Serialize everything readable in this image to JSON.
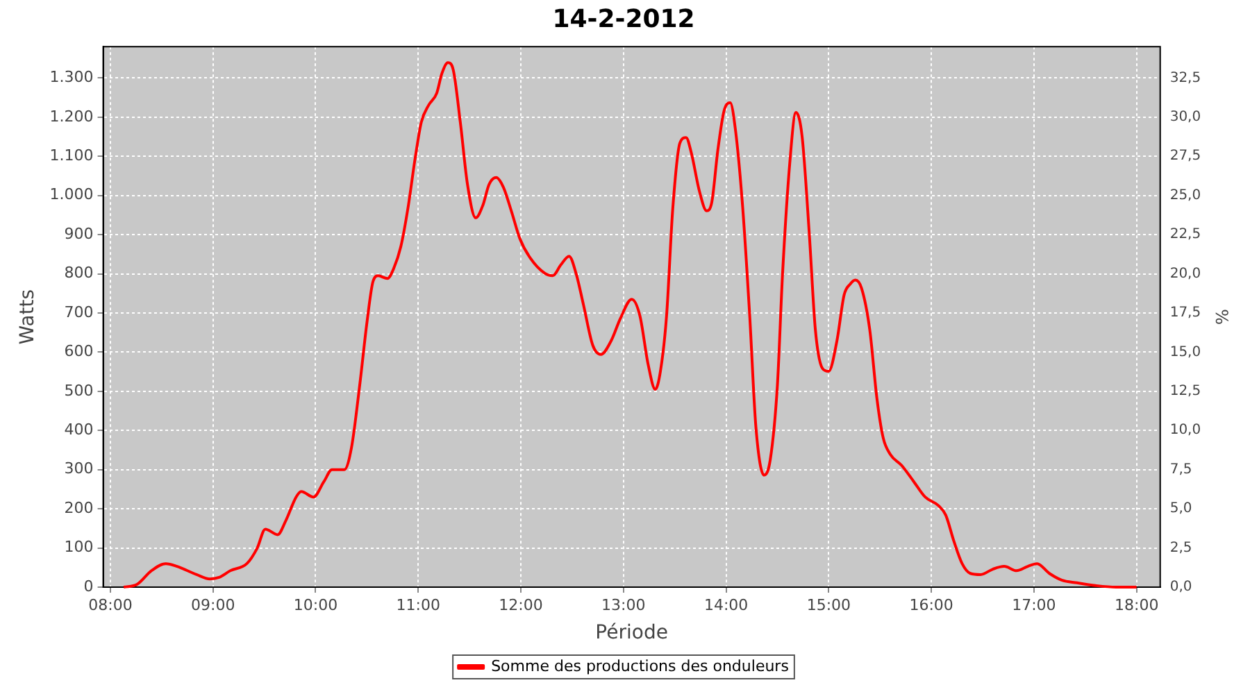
{
  "chart_data": {
    "type": "line",
    "title": "14-2-2012",
    "xlabel": "Période",
    "ylabel": "Watts",
    "y2label": "%",
    "xlim": [
      7.93,
      18.23
    ],
    "xticks": [
      {
        "value": 8,
        "label": "08:00"
      },
      {
        "value": 9,
        "label": "09:00"
      },
      {
        "value": 10,
        "label": "10:00"
      },
      {
        "value": 11,
        "label": "11:00"
      },
      {
        "value": 12,
        "label": "12:00"
      },
      {
        "value": 13,
        "label": "13:00"
      },
      {
        "value": 14,
        "label": "14:00"
      },
      {
        "value": 15,
        "label": "15:00"
      },
      {
        "value": 16,
        "label": "16:00"
      },
      {
        "value": 17,
        "label": "17:00"
      },
      {
        "value": 18,
        "label": "18:00"
      }
    ],
    "ylim": [
      0,
      1380
    ],
    "yticks": [
      0,
      100,
      200,
      300,
      400,
      500,
      600,
      700,
      800,
      900,
      {
        "value": 1000,
        "label": "1.000"
      },
      {
        "value": 1100,
        "label": "1.100"
      },
      {
        "value": 1200,
        "label": "1.200"
      },
      {
        "value": 1300,
        "label": "1.300"
      }
    ],
    "y2lim": [
      0,
      34.5
    ],
    "y2ticks": [
      {
        "value": 0,
        "label": "0,0"
      },
      {
        "value": 2.5,
        "label": "2,5"
      },
      {
        "value": 5,
        "label": "5,0"
      },
      {
        "value": 7.5,
        "label": "7,5"
      },
      {
        "value": 10,
        "label": "10,0"
      },
      {
        "value": 12.5,
        "label": "12,5"
      },
      {
        "value": 15,
        "label": "15,0"
      },
      {
        "value": 17.5,
        "label": "17,5"
      },
      {
        "value": 20,
        "label": "20,0"
      },
      {
        "value": 22.5,
        "label": "22,5"
      },
      {
        "value": 25,
        "label": "25,0"
      },
      {
        "value": 27.5,
        "label": "27,5"
      },
      {
        "value": 30,
        "label": "30,0"
      },
      {
        "value": 32.5,
        "label": "32,5"
      }
    ],
    "grid": true,
    "legend": "bottom",
    "marker": "none",
    "line_style": "solid",
    "series": [
      {
        "name": "Somme des productions des onduleurs",
        "color": "#ff0000",
        "x": [
          8.13,
          8.26,
          8.4,
          8.54,
          8.65,
          8.84,
          8.97,
          9.06,
          9.17,
          9.33,
          9.43,
          9.51,
          9.63,
          9.71,
          9.81,
          9.86,
          9.98,
          10.08,
          10.16,
          10.28,
          10.35,
          10.43,
          10.5,
          10.56,
          10.61,
          10.7,
          10.76,
          10.83,
          10.9,
          10.97,
          11.03,
          11.1,
          11.18,
          11.23,
          11.29,
          11.34,
          11.41,
          11.48,
          11.56,
          11.63,
          11.69,
          11.76,
          11.83,
          11.91,
          11.99,
          12.09,
          12.23,
          12.31,
          12.39,
          12.47,
          12.54,
          12.61,
          12.7,
          12.78,
          12.88,
          12.97,
          13.08,
          13.16,
          13.24,
          13.31,
          13.36,
          13.42,
          13.48,
          13.55,
          13.61,
          13.66,
          13.74,
          13.81,
          13.86,
          13.92,
          13.98,
          14.04,
          14.09,
          14.16,
          14.23,
          14.29,
          14.37,
          14.43,
          14.5,
          14.55,
          14.62,
          14.68,
          14.74,
          14.81,
          14.87,
          14.94,
          15.0,
          15.08,
          15.15,
          15.21,
          15.26,
          15.32,
          15.4,
          15.47,
          15.53,
          15.6,
          15.71,
          15.83,
          15.94,
          16.07,
          16.14,
          16.22,
          16.3,
          16.38,
          16.48,
          16.6,
          16.71,
          16.83,
          16.94,
          17.03,
          17.15,
          17.27,
          17.42,
          17.6,
          17.8,
          18.0
        ],
        "values": [
          0,
          7,
          42,
          60,
          53,
          32,
          21,
          25,
          42,
          60,
          99,
          148,
          134,
          170,
          230,
          244,
          230,
          269,
          300,
          300,
          357,
          516,
          675,
          781,
          795,
          788,
          813,
          869,
          968,
          1095,
          1187,
          1230,
          1261,
          1311,
          1339,
          1322,
          1187,
          1028,
          943,
          975,
          1028,
          1046,
          1021,
          958,
          890,
          841,
          802,
          795,
          823,
          845,
          799,
          721,
          618,
          594,
          629,
          686,
          735,
          693,
          569,
          505,
          551,
          693,
          965,
          1134,
          1148,
          1110,
          1011,
          961,
          982,
          1117,
          1216,
          1237,
          1170,
          975,
          693,
          410,
          286,
          325,
          516,
          799,
          1081,
          1212,
          1152,
          905,
          657,
          558,
          551,
          629,
          746,
          774,
          784,
          763,
          657,
          481,
          382,
          339,
          311,
          269,
          230,
          208,
          184,
          117,
          60,
          35,
          32,
          46,
          53,
          42,
          53,
          60,
          35,
          18,
          11,
          4,
          0,
          0
        ]
      }
    ]
  }
}
